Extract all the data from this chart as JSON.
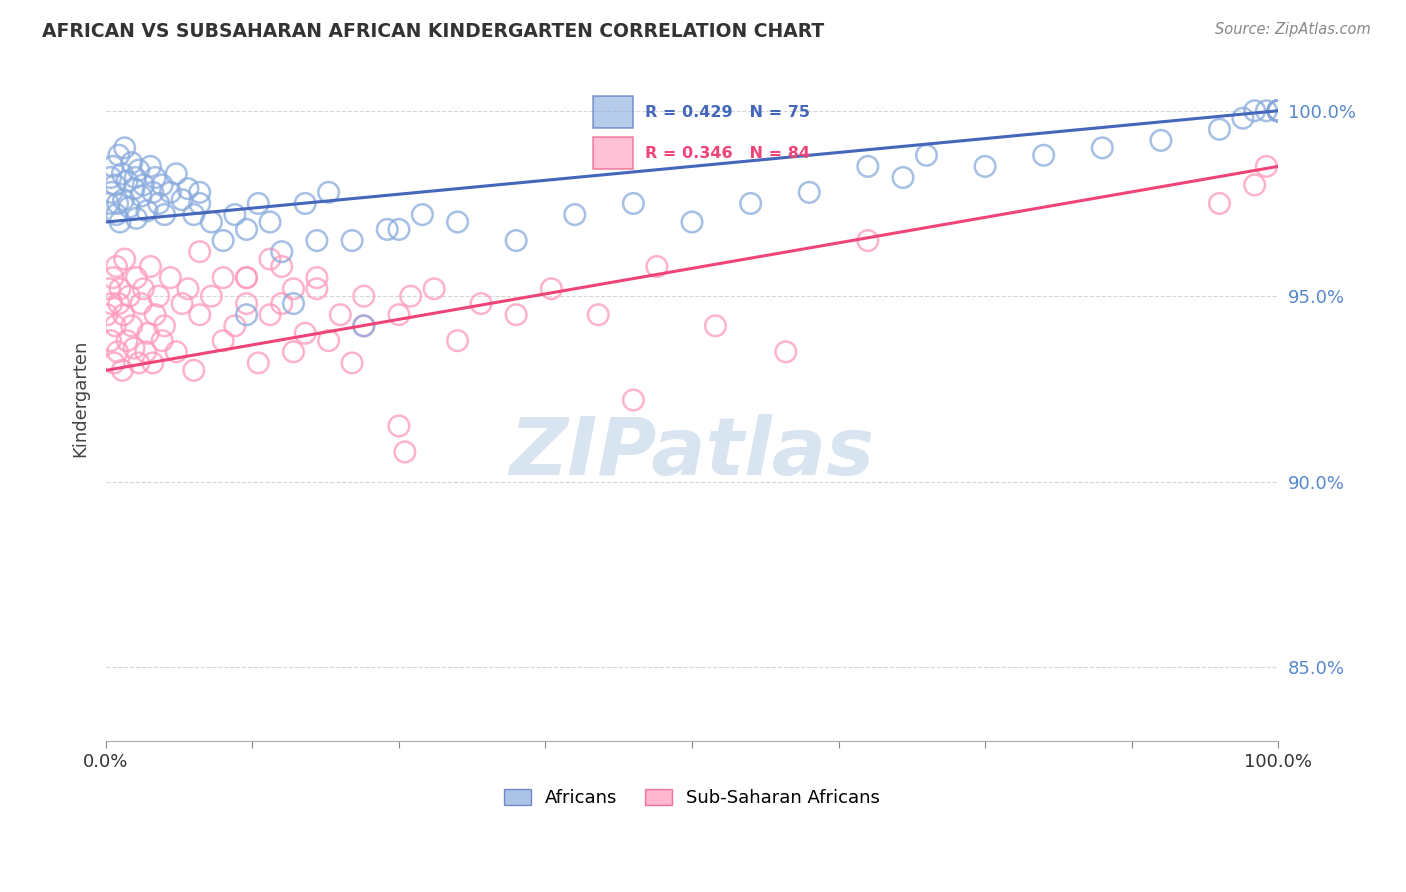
{
  "title": "AFRICAN VS SUBSAHARAN AFRICAN KINDERGARTEN CORRELATION CHART",
  "source": "Source: ZipAtlas.com",
  "ylabel": "Kindergarten",
  "legend_label_blue": "Africans",
  "legend_label_pink": "Sub-Saharan Africans",
  "blue_scatter_color": "#88AADD",
  "pink_scatter_color": "#FF99BB",
  "blue_line_color": "#4466BB",
  "pink_line_color": "#EE4477",
  "legend_box_color": "#F0F4FF",
  "legend_border_color": "#AABBDD",
  "blue_legend_text_color": "#4466BB",
  "pink_legend_text_color": "#EE4477",
  "watermark_color": "#D8E4F0",
  "ytick_color": "#5588CC",
  "xlim": [
    0.0,
    100.0
  ],
  "ylim": [
    83.0,
    101.5
  ],
  "y_ticks": [
    85.0,
    90.0,
    95.0,
    100.0
  ],
  "y_tick_labels": [
    "85.0%",
    "90.0%",
    "95.0%",
    "100.0%"
  ],
  "blue_intercept": 97.0,
  "blue_slope": 0.03,
  "pink_intercept": 93.0,
  "pink_slope": 0.055,
  "africans_x": [
    0.2,
    0.4,
    0.5,
    0.6,
    0.8,
    0.9,
    1.0,
    1.1,
    1.2,
    1.4,
    1.5,
    1.6,
    1.8,
    2.0,
    2.2,
    2.4,
    2.5,
    2.6,
    2.8,
    3.0,
    3.2,
    3.5,
    3.8,
    4.0,
    4.2,
    4.5,
    4.8,
    5.0,
    5.5,
    6.0,
    6.5,
    7.0,
    7.5,
    8.0,
    9.0,
    10.0,
    11.0,
    12.0,
    13.0,
    14.0,
    15.0,
    17.0,
    19.0,
    21.0,
    24.0,
    27.0,
    12.0,
    16.0,
    22.0,
    65.0,
    70.0,
    75.0,
    80.0,
    85.0,
    90.0,
    95.0,
    97.0,
    98.0,
    99.0,
    100.0,
    100.0,
    100.0,
    100.0,
    100.0,
    8.0,
    18.0,
    25.0,
    30.0,
    35.0,
    40.0,
    45.0,
    50.0,
    55.0,
    60.0,
    68.0
  ],
  "africans_y": [
    97.5,
    98.2,
    97.8,
    98.5,
    98.0,
    97.2,
    97.5,
    98.8,
    97.0,
    98.3,
    97.6,
    99.0,
    98.1,
    97.4,
    98.6,
    97.9,
    98.2,
    97.1,
    98.4,
    97.7,
    98.0,
    97.3,
    98.5,
    97.8,
    98.2,
    97.5,
    98.0,
    97.2,
    97.8,
    98.3,
    97.6,
    97.9,
    97.2,
    97.5,
    97.0,
    96.5,
    97.2,
    96.8,
    97.5,
    97.0,
    96.2,
    97.5,
    97.8,
    96.5,
    96.8,
    97.2,
    94.5,
    94.8,
    94.2,
    98.5,
    98.8,
    98.5,
    98.8,
    99.0,
    99.2,
    99.5,
    99.8,
    100.0,
    100.0,
    100.0,
    100.0,
    100.0,
    100.0,
    100.0,
    97.8,
    96.5,
    96.8,
    97.0,
    96.5,
    97.2,
    97.5,
    97.0,
    97.5,
    97.8,
    98.2
  ],
  "subsaharan_x": [
    0.1,
    0.3,
    0.4,
    0.5,
    0.6,
    0.7,
    0.8,
    0.9,
    1.0,
    1.1,
    1.2,
    1.4,
    1.5,
    1.6,
    1.8,
    2.0,
    2.2,
    2.4,
    2.6,
    2.8,
    3.0,
    3.2,
    3.4,
    3.6,
    3.8,
    4.0,
    4.2,
    4.5,
    4.8,
    5.0,
    5.5,
    6.0,
    6.5,
    7.0,
    7.5,
    8.0,
    9.0,
    10.0,
    11.0,
    12.0,
    13.0,
    14.0,
    15.0,
    16.0,
    17.0,
    18.0,
    19.0,
    20.0,
    21.0,
    22.0,
    25.0,
    28.0,
    30.0,
    35.0,
    65.0,
    95.0,
    98.0,
    99.0,
    100.0,
    100.0,
    100.0,
    100.0,
    100.0,
    100.0,
    100.0,
    25.0,
    25.5,
    45.0,
    58.0,
    12.0,
    15.0,
    18.0,
    22.0,
    26.0,
    32.0,
    38.0,
    42.0,
    47.0,
    52.0,
    8.0,
    10.0,
    12.0,
    14.0,
    16.0
  ],
  "subsaharan_y": [
    94.5,
    95.2,
    93.8,
    94.8,
    95.5,
    93.2,
    94.2,
    95.8,
    93.5,
    94.8,
    95.2,
    93.0,
    94.5,
    96.0,
    93.8,
    95.0,
    94.2,
    93.6,
    95.5,
    93.2,
    94.8,
    95.2,
    93.5,
    94.0,
    95.8,
    93.2,
    94.5,
    95.0,
    93.8,
    94.2,
    95.5,
    93.5,
    94.8,
    95.2,
    93.0,
    94.5,
    95.0,
    93.8,
    94.2,
    95.5,
    93.2,
    94.5,
    95.8,
    93.5,
    94.0,
    95.2,
    93.8,
    94.5,
    93.2,
    95.0,
    94.5,
    95.2,
    93.8,
    94.5,
    96.5,
    97.5,
    98.0,
    98.5,
    100.0,
    100.0,
    100.0,
    100.0,
    100.0,
    100.0,
    100.0,
    91.5,
    90.8,
    92.2,
    93.5,
    95.5,
    94.8,
    95.5,
    94.2,
    95.0,
    94.8,
    95.2,
    94.5,
    95.8,
    94.2,
    96.2,
    95.5,
    94.8,
    96.0,
    95.2
  ]
}
